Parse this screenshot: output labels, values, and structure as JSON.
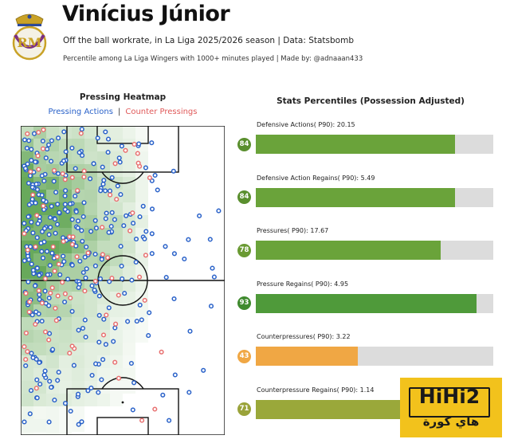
{
  "header": {
    "title": "Vinícius Júnior",
    "subtitle": "Off the ball workrate, in La Liga 2025/2026 season | Data: Statsbomb",
    "subtitle2": "Percentile among La Liga Wingers with 1000+ minutes played | Made by: @adnaaan433"
  },
  "crest": {
    "icon": "real-madrid-crest-icon",
    "colors": {
      "gold": "#c9a227",
      "blue": "#2d4a9a",
      "purple": "#7b2f82"
    }
  },
  "heatmap": {
    "title": "Pressing Heatmap",
    "legend_blue": "Pressing Actions",
    "legend_sep": "|",
    "legend_red": "Counter Pressings",
    "colors": {
      "pressing": "#2a62c9",
      "counter": "#e87070",
      "heat": "#4e9a3e"
    }
  },
  "chart_data": [
    {
      "type": "bar",
      "title": "Stats Percentiles (Possession Adjusted)",
      "categories": [
        "Defensive Actions( P90): 20.15",
        "Defensive Action Regains( P90): 5.49",
        "Pressures( P90): 17.67",
        "Pressure Regains( P90): 4.95",
        "Counterpressures( P90): 3.22",
        "Counterpressure Regains( P90): 1.14"
      ],
      "values": [
        84,
        84,
        78,
        93,
        43,
        71
      ],
      "ylim": [
        0,
        100
      ],
      "colors": [
        "#6aa33a",
        "#6aa33a",
        "#6aa33a",
        "#4f9a3a",
        "#f0a744",
        "#9aa83a"
      ],
      "badge_colors": [
        "#5a8f2e",
        "#5a8f2e",
        "#6a9a33",
        "#3f8a2e",
        "#f0a744",
        "#9aa33a"
      ]
    }
  ],
  "watermark": {
    "line1": "HiHi2",
    "line2": "هاي كورة"
  }
}
